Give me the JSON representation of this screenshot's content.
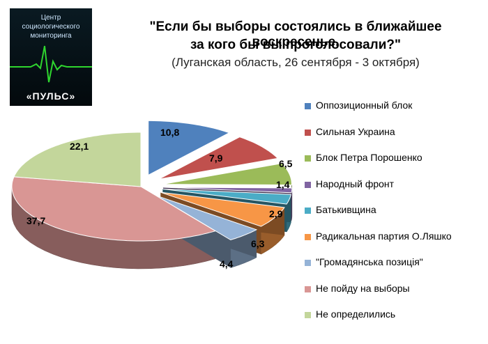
{
  "logo": {
    "line1": "Центр",
    "line2": "социологического",
    "line3": "мониторинга",
    "name": "«ПУЛЬС»"
  },
  "chart_data": {
    "type": "pie",
    "title": "\"Если бы выборы состоялись в ближайшее воскресенье,",
    "title_line2": "за кого бы вы проголосовали?\"",
    "subtitle": "(Луганская область, 26 сентября - 3 октября)",
    "legend_position": "right",
    "unit": "%",
    "slices": [
      {
        "label": "Оппозиционный блок",
        "value": 10.8,
        "display": "10,8",
        "color": "#4f81bd"
      },
      {
        "label": "Сильная Украина",
        "value": 7.9,
        "display": "7,9",
        "color": "#c0504d"
      },
      {
        "label": "Блок Петра Порошенко",
        "value": 6.5,
        "display": "6,5",
        "color": "#9bbb59"
      },
      {
        "label": "Народный фронт",
        "value": 1.4,
        "display": "1,4",
        "color": "#8064a2"
      },
      {
        "label": "Батькивщина",
        "value": 2.9,
        "display": "2,9",
        "color": "#4bacc6"
      },
      {
        "label": "Радикальная партия О.Ляшко",
        "value": 6.3,
        "display": "6,3",
        "color": "#f79646"
      },
      {
        "label": "\"Громадянська позиція\"",
        "value": 4.4,
        "display": "4,4",
        "color": "#95b3d7"
      },
      {
        "label": "Не пойду на выборы",
        "value": 37.7,
        "display": "37,7",
        "color": "#d99694"
      },
      {
        "label": "Не определились",
        "value": 22.1,
        "display": "22,1",
        "color": "#c3d69b"
      }
    ]
  }
}
